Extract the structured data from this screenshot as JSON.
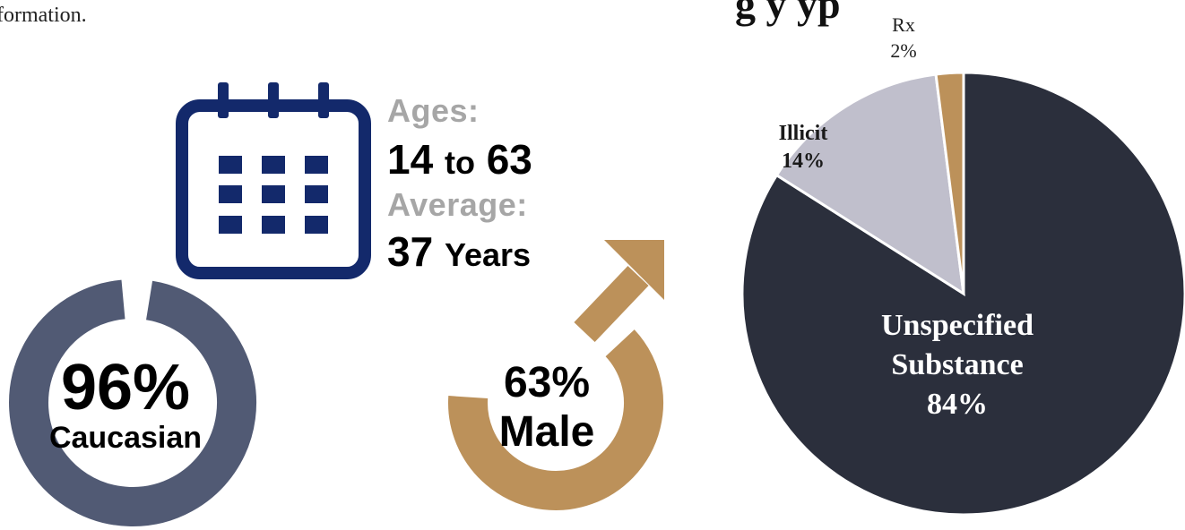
{
  "page": {
    "intro_fragment": "formation.",
    "chart_heading_fragment": "g                      y yp"
  },
  "ages": {
    "label": "Ages:",
    "range_start": "14",
    "range_connector": "to",
    "range_end": "63",
    "average_label": "Average:",
    "average_value": "37",
    "average_unit": "Years"
  },
  "caucasian": {
    "percent_text": "96%",
    "label": "Caucasian",
    "fraction": 0.96,
    "color": "#515a74"
  },
  "male": {
    "percent_text": "63%",
    "label": "Male",
    "fraction": 0.63,
    "color": "#bc915a"
  },
  "calendar": {
    "icon": "calendar-icon",
    "color": "#13296b"
  },
  "chart_data": {
    "type": "pie",
    "categories": [
      "Unspecified Substance",
      "Illicit",
      "Rx"
    ],
    "values": [
      84,
      14,
      2
    ],
    "labels": [
      {
        "name_lines": [
          "Unspecified",
          "Substance"
        ],
        "value": "84%"
      },
      {
        "name_lines": [
          "Illicit"
        ],
        "value": "14%"
      },
      {
        "name_lines": [
          "Rx"
        ],
        "value": "2%"
      }
    ],
    "colors": [
      "#2b2f3c",
      "#c0bfcc",
      "#bc915a"
    ]
  }
}
